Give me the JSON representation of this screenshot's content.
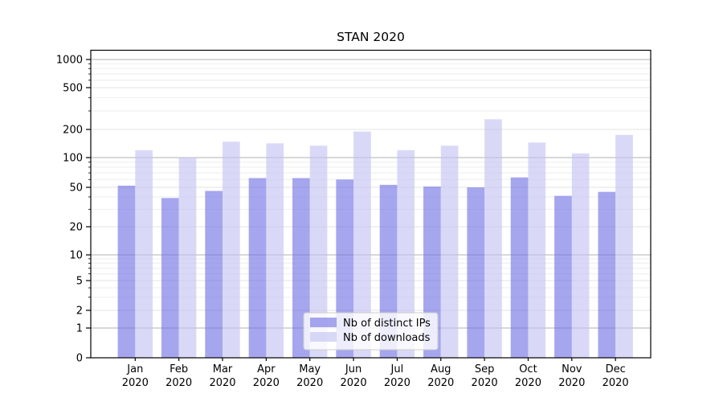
{
  "title": "STAN 2020",
  "chart_data": {
    "type": "bar",
    "title": "STAN 2020",
    "categories": [
      "Jan 2020",
      "Feb 2020",
      "Mar 2020",
      "Apr 2020",
      "May 2020",
      "Jun 2020",
      "Jul 2020",
      "Aug 2020",
      "Sep 2020",
      "Oct 2020",
      "Nov 2020",
      "Dec 2020"
    ],
    "series": [
      {
        "name": "Nb of distinct IPs",
        "color_hex": "#a6a6ee",
        "color_rgba": "rgba(112,112,228,0.62)",
        "values": [
          52,
          39,
          46,
          62,
          62,
          60,
          53,
          51,
          50,
          63,
          41,
          45
        ]
      },
      {
        "name": "Nb of downloads",
        "color_hex": "#d9d9f7",
        "color_rgba": "rgba(194,194,242,0.62)",
        "values": [
          120,
          101,
          148,
          142,
          134,
          190,
          120,
          134,
          250,
          145,
          111,
          175
        ]
      }
    ],
    "y_axis": {
      "scale": "symlog",
      "ticks": [
        0,
        1,
        2,
        5,
        10,
        20,
        50,
        100,
        200,
        500,
        1000
      ],
      "top_value": 1000
    },
    "x_axis": {
      "tick_label_line2": "2020"
    },
    "legend": {
      "position": "lower center",
      "entries": [
        "Nb of distinct IPs",
        "Nb of downloads"
      ]
    },
    "grid": "on",
    "colors": {
      "major_grid": "#b0b0b0",
      "tick_grid": "#e3e3e3",
      "minor_grid": "#eeeeee",
      "axis": "#000000",
      "text": "#000000",
      "legend_border": "#cccccc"
    }
  }
}
